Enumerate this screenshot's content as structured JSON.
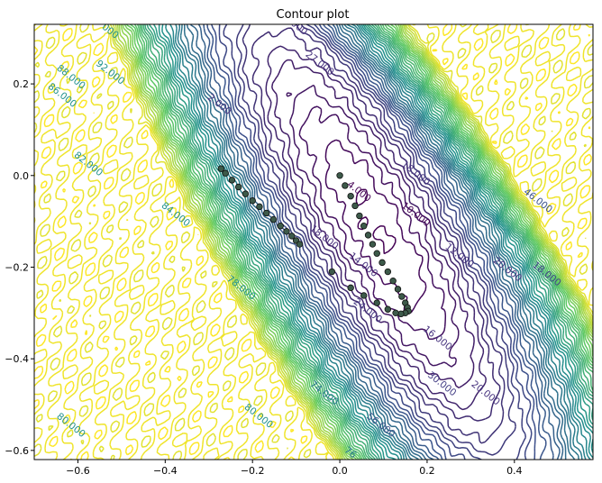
{
  "chart_data": {
    "type": "contour",
    "title": "Contour plot",
    "xlabel": "",
    "ylabel": "",
    "xlim": [
      -0.7,
      0.58
    ],
    "ylim": [
      -0.62,
      0.33
    ],
    "xticks": [
      {
        "value": -0.6,
        "label": "−0.6"
      },
      {
        "value": -0.4,
        "label": "−0.4"
      },
      {
        "value": -0.2,
        "label": "−0.2"
      },
      {
        "value": 0.0,
        "label": "0.0"
      },
      {
        "value": 0.2,
        "label": "0.2"
      },
      {
        "value": 0.4,
        "label": "0.4"
      }
    ],
    "yticks": [
      {
        "value": 0.2,
        "label": "0.2"
      },
      {
        "value": 0.0,
        "label": "0.0"
      },
      {
        "value": -0.2,
        "label": "−0.2"
      },
      {
        "value": -0.4,
        "label": "−0.4"
      },
      {
        "value": -0.6,
        "label": "−0.6"
      }
    ],
    "grid": false,
    "colormap": [
      "#440154",
      "#3b528b",
      "#21918c",
      "#5ec962",
      "#fde725"
    ],
    "contour_labels": [
      {
        "text": "92.000",
        "x": -0.53,
        "y": 0.22,
        "color": "#21918c"
      },
      {
        "text": "88.000",
        "x": -0.62,
        "y": 0.21,
        "color": "#21918c"
      },
      {
        "text": "86.000",
        "x": -0.64,
        "y": 0.17,
        "color": "#21918c"
      },
      {
        "text": "82.000",
        "x": -0.58,
        "y": 0.02,
        "color": "#21918c"
      },
      {
        "text": "84.000",
        "x": -0.38,
        "y": -0.09,
        "color": "#21918c"
      },
      {
        "text": "78.000",
        "x": -0.23,
        "y": -0.25,
        "color": "#21918c"
      },
      {
        "text": "80.000",
        "x": -0.62,
        "y": -0.55,
        "color": "#21918c"
      },
      {
        "text": "80.000",
        "x": -0.19,
        "y": -0.53,
        "color": "#21918c"
      },
      {
        "text": "74.000",
        "x": -0.04,
        "y": -0.48,
        "color": "#2a788e"
      },
      {
        "text": "76",
        "x": 0.02,
        "y": -0.61,
        "color": "#2a788e"
      },
      {
        "text": "4.000",
        "x": 0.04,
        "y": -0.04,
        "color": "#440154"
      },
      {
        "text": "18.000",
        "x": 0.17,
        "y": 0.0,
        "color": "#46327e"
      },
      {
        "text": "10.000",
        "x": 0.17,
        "y": -0.09,
        "color": "#440154"
      },
      {
        "text": "12.000",
        "x": 0.27,
        "y": -0.18,
        "color": "#46327e"
      },
      {
        "text": "14.000",
        "x": 0.05,
        "y": -0.2,
        "color": "#46327e"
      },
      {
        "text": "18.000",
        "x": -0.04,
        "y": -0.14,
        "color": "#472d7b"
      },
      {
        "text": "16.000",
        "x": 0.22,
        "y": -0.36,
        "color": "#46327e"
      },
      {
        "text": "20.000",
        "x": 0.38,
        "y": -0.21,
        "color": "#46327e"
      },
      {
        "text": "24.000",
        "x": 0.06,
        "y": -0.3,
        "color": "#453882"
      },
      {
        "text": "20.000",
        "x": 0.33,
        "y": -0.48,
        "color": "#46327e"
      },
      {
        "text": "30.000",
        "x": 0.23,
        "y": -0.46,
        "color": "#433e85"
      },
      {
        "text": "56.000",
        "x": 0.09,
        "y": -0.55,
        "color": "#3b528b"
      },
      {
        "text": "18.000",
        "x": 0.47,
        "y": -0.22,
        "color": "#414487"
      },
      {
        "text": "46.000",
        "x": 0.45,
        "y": -0.06,
        "color": "#3b528b"
      },
      {
        "text": "27.000",
        "x": -0.05,
        "y": 0.24,
        "color": "#46327e"
      },
      {
        "text": ".000",
        "x": -0.1,
        "y": 0.32,
        "color": "#46327e"
      },
      {
        "text": "2.000",
        "x": -0.28,
        "y": 0.15,
        "color": "#46327e"
      },
      {
        "text": "000",
        "x": -0.53,
        "y": 0.31,
        "color": "#21918c"
      }
    ],
    "series": [
      {
        "type": "scatter",
        "x": [
          -0.272,
          -0.262,
          -0.247,
          -0.232,
          -0.216,
          -0.2,
          -0.184,
          -0.168,
          -0.152,
          -0.136,
          -0.122,
          -0.11,
          -0.1,
          -0.092
        ],
        "y": [
          0.015,
          0.005,
          -0.01,
          -0.025,
          -0.04,
          -0.055,
          -0.068,
          -0.082,
          -0.096,
          -0.11,
          -0.122,
          -0.132,
          -0.142,
          -0.15
        ]
      },
      {
        "type": "scatter",
        "x": [
          0.0,
          0.012,
          0.025,
          0.035,
          0.045,
          0.055,
          0.065,
          0.075,
          0.085,
          0.097,
          0.11,
          0.122,
          0.133,
          0.142,
          0.15,
          0.155,
          0.157,
          0.15,
          0.14,
          0.128,
          0.11,
          0.085,
          0.055,
          0.025,
          -0.018
        ],
        "y": [
          0.0,
          -0.022,
          -0.045,
          -0.066,
          -0.088,
          -0.11,
          -0.13,
          -0.15,
          -0.17,
          -0.19,
          -0.21,
          -0.23,
          -0.248,
          -0.264,
          -0.278,
          -0.288,
          -0.296,
          -0.3,
          -0.302,
          -0.3,
          -0.292,
          -0.278,
          -0.262,
          -0.245,
          -0.21
        ]
      }
    ]
  }
}
